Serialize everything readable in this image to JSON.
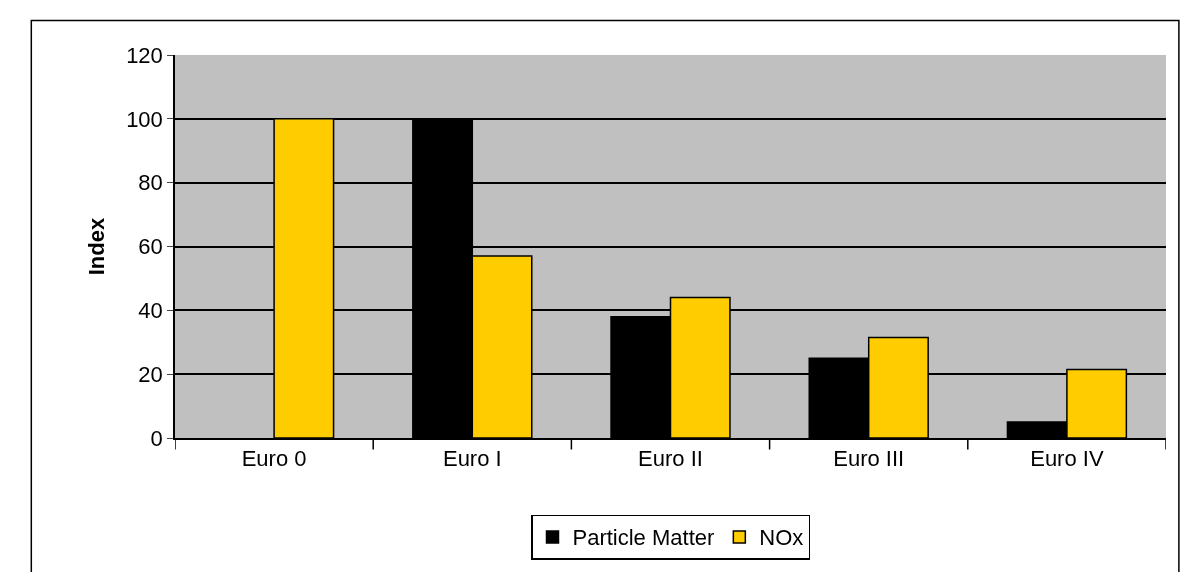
{
  "chart_data": {
    "type": "bar",
    "ylabel": "Index",
    "categories": [
      "Euro 0",
      "Euro I",
      "Euro II",
      "Euro III",
      "Euro IV"
    ],
    "series": [
      {
        "name": "Particle Matter",
        "color": "#000000",
        "values": [
          null,
          100,
          38,
          25,
          5
        ]
      },
      {
        "name": "NOx",
        "color": "#ffcc00",
        "values": [
          100,
          57,
          44,
          31.5,
          21.5
        ]
      }
    ],
    "ylim": [
      0,
      120
    ],
    "yticks": [
      0,
      20,
      40,
      60,
      80,
      100,
      120
    ],
    "grid": "y",
    "legend": "bottom"
  }
}
